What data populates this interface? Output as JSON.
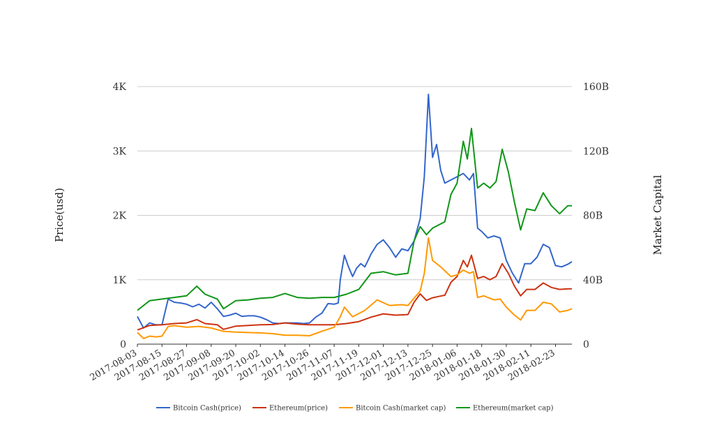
{
  "chart_data": {
    "type": "line",
    "title": "",
    "y_left_label": "Price(usd)",
    "y_right_label": "Market Capital",
    "y_left_ticks": [
      "0",
      "1K",
      "2K",
      "3K",
      "4K"
    ],
    "y_right_ticks": [
      "0",
      "40B",
      "80B",
      "120B",
      "160B"
    ],
    "y_left_range": [
      0,
      4000
    ],
    "y_right_range": [
      0,
      160000000000
    ],
    "x_range": [
      "2017-08-03",
      "2018-03-03"
    ],
    "x_ticks": [
      "2017-08-03",
      "2017-08-15",
      "2017-08-27",
      "2017-09-08",
      "2017-09-20",
      "2017-10-02",
      "2017-10-14",
      "2017-10-26",
      "2017-11-07",
      "2017-11-19",
      "2017-12-01",
      "2017-12-13",
      "2017-12-25",
      "2018-01-06",
      "2018-01-18",
      "2018-01-30",
      "2018-02-11",
      "2018-02-23"
    ],
    "grid": true,
    "legend_position": "bottom",
    "series": [
      {
        "name": "Bitcoin Cash(price)",
        "color": "#3366cc",
        "axis": "left",
        "points": [
          [
            "2017-08-03",
            430
          ],
          [
            "2017-08-06",
            250
          ],
          [
            "2017-08-09",
            330
          ],
          [
            "2017-08-12",
            300
          ],
          [
            "2017-08-15",
            300
          ],
          [
            "2017-08-18",
            700
          ],
          [
            "2017-08-21",
            650
          ],
          [
            "2017-08-24",
            640
          ],
          [
            "2017-08-27",
            620
          ],
          [
            "2017-08-30",
            580
          ],
          [
            "2017-09-02",
            620
          ],
          [
            "2017-09-05",
            560
          ],
          [
            "2017-09-08",
            650
          ],
          [
            "2017-09-11",
            550
          ],
          [
            "2017-09-14",
            430
          ],
          [
            "2017-09-17",
            450
          ],
          [
            "2017-09-20",
            480
          ],
          [
            "2017-09-23",
            430
          ],
          [
            "2017-09-26",
            440
          ],
          [
            "2017-09-29",
            440
          ],
          [
            "2017-10-02",
            420
          ],
          [
            "2017-10-05",
            380
          ],
          [
            "2017-10-08",
            330
          ],
          [
            "2017-10-11",
            320
          ],
          [
            "2017-10-14",
            330
          ],
          [
            "2017-10-17",
            330
          ],
          [
            "2017-10-20",
            330
          ],
          [
            "2017-10-23",
            320
          ],
          [
            "2017-10-26",
            330
          ],
          [
            "2017-10-29",
            420
          ],
          [
            "2017-11-01",
            480
          ],
          [
            "2017-11-04",
            630
          ],
          [
            "2017-11-07",
            620
          ],
          [
            "2017-11-09",
            640
          ],
          [
            "2017-11-10",
            1000
          ],
          [
            "2017-11-12",
            1380
          ],
          [
            "2017-11-14",
            1200
          ],
          [
            "2017-11-16",
            1050
          ],
          [
            "2017-11-18",
            1180
          ],
          [
            "2017-11-20",
            1250
          ],
          [
            "2017-11-22",
            1200
          ],
          [
            "2017-11-25",
            1400
          ],
          [
            "2017-11-28",
            1550
          ],
          [
            "2017-12-01",
            1620
          ],
          [
            "2017-12-04",
            1500
          ],
          [
            "2017-12-07",
            1350
          ],
          [
            "2017-12-10",
            1480
          ],
          [
            "2017-12-13",
            1450
          ],
          [
            "2017-12-16",
            1600
          ],
          [
            "2017-12-19",
            1950
          ],
          [
            "2017-12-21",
            2600
          ],
          [
            "2017-12-23",
            3880
          ],
          [
            "2017-12-25",
            2900
          ],
          [
            "2017-12-27",
            3100
          ],
          [
            "2017-12-29",
            2700
          ],
          [
            "2017-12-31",
            2500
          ],
          [
            "2018-01-03",
            2550
          ],
          [
            "2018-01-06",
            2600
          ],
          [
            "2018-01-09",
            2650
          ],
          [
            "2018-01-12",
            2550
          ],
          [
            "2018-01-14",
            2650
          ],
          [
            "2018-01-16",
            1800
          ],
          [
            "2018-01-18",
            1750
          ],
          [
            "2018-01-21",
            1650
          ],
          [
            "2018-01-24",
            1680
          ],
          [
            "2018-01-27",
            1650
          ],
          [
            "2018-01-30",
            1300
          ],
          [
            "2018-02-02",
            1100
          ],
          [
            "2018-02-05",
            950
          ],
          [
            "2018-02-08",
            1250
          ],
          [
            "2018-02-11",
            1250
          ],
          [
            "2018-02-14",
            1350
          ],
          [
            "2018-02-17",
            1550
          ],
          [
            "2018-02-20",
            1500
          ],
          [
            "2018-02-23",
            1220
          ],
          [
            "2018-02-26",
            1200
          ],
          [
            "2018-03-01",
            1240
          ],
          [
            "2018-03-03",
            1280
          ]
        ]
      },
      {
        "name": "Ethereum(price)",
        "color": "#cc3311",
        "axis": "left",
        "points": [
          [
            "2017-08-03",
            220
          ],
          [
            "2017-08-09",
            290
          ],
          [
            "2017-08-15",
            300
          ],
          [
            "2017-08-21",
            320
          ],
          [
            "2017-08-27",
            330
          ],
          [
            "2017-09-01",
            380
          ],
          [
            "2017-09-05",
            320
          ],
          [
            "2017-09-11",
            300
          ],
          [
            "2017-09-14",
            230
          ],
          [
            "2017-09-20",
            280
          ],
          [
            "2017-09-26",
            290
          ],
          [
            "2017-10-02",
            300
          ],
          [
            "2017-10-08",
            305
          ],
          [
            "2017-10-14",
            330
          ],
          [
            "2017-10-20",
            310
          ],
          [
            "2017-10-26",
            300
          ],
          [
            "2017-11-01",
            300
          ],
          [
            "2017-11-07",
            300
          ],
          [
            "2017-11-13",
            320
          ],
          [
            "2017-11-19",
            350
          ],
          [
            "2017-11-25",
            420
          ],
          [
            "2017-12-01",
            470
          ],
          [
            "2017-12-07",
            450
          ],
          [
            "2017-12-13",
            460
          ],
          [
            "2017-12-16",
            650
          ],
          [
            "2017-12-19",
            780
          ],
          [
            "2017-12-22",
            680
          ],
          [
            "2017-12-25",
            720
          ],
          [
            "2017-12-28",
            740
          ],
          [
            "2017-12-31",
            760
          ],
          [
            "2018-01-03",
            960
          ],
          [
            "2018-01-06",
            1050
          ],
          [
            "2018-01-09",
            1300
          ],
          [
            "2018-01-11",
            1200
          ],
          [
            "2018-01-13",
            1380
          ],
          [
            "2018-01-16",
            1020
          ],
          [
            "2018-01-19",
            1050
          ],
          [
            "2018-01-22",
            1000
          ],
          [
            "2018-01-25",
            1050
          ],
          [
            "2018-01-28",
            1250
          ],
          [
            "2018-01-31",
            1100
          ],
          [
            "2018-02-03",
            900
          ],
          [
            "2018-02-06",
            750
          ],
          [
            "2018-02-09",
            850
          ],
          [
            "2018-02-13",
            850
          ],
          [
            "2018-02-17",
            950
          ],
          [
            "2018-02-21",
            880
          ],
          [
            "2018-02-25",
            850
          ],
          [
            "2018-03-01",
            860
          ],
          [
            "2018-03-03",
            860
          ]
        ]
      },
      {
        "name": "Bitcoin Cash(market cap)",
        "color": "#ff9900",
        "axis": "right",
        "points": [
          [
            "2017-08-03",
            7200000000
          ],
          [
            "2017-08-06",
            3500000000
          ],
          [
            "2017-08-09",
            5000000000
          ],
          [
            "2017-08-12",
            4500000000
          ],
          [
            "2017-08-15",
            5000000000
          ],
          [
            "2017-08-18",
            11000000000
          ],
          [
            "2017-08-21",
            11500000000
          ],
          [
            "2017-08-27",
            10500000000
          ],
          [
            "2017-09-02",
            11000000000
          ],
          [
            "2017-09-08",
            10000000000
          ],
          [
            "2017-09-14",
            8000000000
          ],
          [
            "2017-09-20",
            7500000000
          ],
          [
            "2017-09-26",
            7200000000
          ],
          [
            "2017-10-02",
            7000000000
          ],
          [
            "2017-10-08",
            6500000000
          ],
          [
            "2017-10-14",
            5500000000
          ],
          [
            "2017-10-20",
            5500000000
          ],
          [
            "2017-10-26",
            5200000000
          ],
          [
            "2017-11-01",
            8000000000
          ],
          [
            "2017-11-07",
            10500000000
          ],
          [
            "2017-11-10",
            17000000000
          ],
          [
            "2017-11-12",
            23000000000
          ],
          [
            "2017-11-16",
            17000000000
          ],
          [
            "2017-11-22",
            21000000000
          ],
          [
            "2017-11-28",
            27500000000
          ],
          [
            "2017-12-04",
            24000000000
          ],
          [
            "2017-12-10",
            24500000000
          ],
          [
            "2017-12-13",
            24000000000
          ],
          [
            "2017-12-19",
            33000000000
          ],
          [
            "2017-12-21",
            44000000000
          ],
          [
            "2017-12-23",
            66000000000
          ],
          [
            "2017-12-25",
            52000000000
          ],
          [
            "2017-12-29",
            48000000000
          ],
          [
            "2018-01-03",
            42000000000
          ],
          [
            "2018-01-06",
            43000000000
          ],
          [
            "2018-01-09",
            46000000000
          ],
          [
            "2018-01-12",
            44000000000
          ],
          [
            "2018-01-14",
            45000000000
          ],
          [
            "2018-01-16",
            29000000000
          ],
          [
            "2018-01-19",
            30000000000
          ],
          [
            "2018-01-24",
            27500000000
          ],
          [
            "2018-01-27",
            28000000000
          ],
          [
            "2018-01-30",
            23000000000
          ],
          [
            "2018-02-03",
            18000000000
          ],
          [
            "2018-02-06",
            15000000000
          ],
          [
            "2018-02-09",
            21000000000
          ],
          [
            "2018-02-13",
            21000000000
          ],
          [
            "2018-02-17",
            26000000000
          ],
          [
            "2018-02-21",
            25000000000
          ],
          [
            "2018-02-25",
            20000000000
          ],
          [
            "2018-03-01",
            21000000000
          ],
          [
            "2018-03-03",
            22000000000
          ]
        ]
      },
      {
        "name": "Ethereum(market cap)",
        "color": "#109618",
        "axis": "right",
        "points": [
          [
            "2017-08-03",
            21000000000
          ],
          [
            "2017-08-09",
            27000000000
          ],
          [
            "2017-08-15",
            28000000000
          ],
          [
            "2017-08-21",
            29000000000
          ],
          [
            "2017-08-27",
            30000000000
          ],
          [
            "2017-09-01",
            36000000000
          ],
          [
            "2017-09-05",
            31000000000
          ],
          [
            "2017-09-11",
            28000000000
          ],
          [
            "2017-09-14",
            22000000000
          ],
          [
            "2017-09-20",
            27000000000
          ],
          [
            "2017-09-26",
            27500000000
          ],
          [
            "2017-10-02",
            28500000000
          ],
          [
            "2017-10-08",
            29000000000
          ],
          [
            "2017-10-14",
            31500000000
          ],
          [
            "2017-10-20",
            29000000000
          ],
          [
            "2017-10-26",
            28500000000
          ],
          [
            "2017-11-01",
            29000000000
          ],
          [
            "2017-11-07",
            29000000000
          ],
          [
            "2017-11-13",
            31000000000
          ],
          [
            "2017-11-19",
            34000000000
          ],
          [
            "2017-11-25",
            44000000000
          ],
          [
            "2017-12-01",
            45000000000
          ],
          [
            "2017-12-07",
            43000000000
          ],
          [
            "2017-12-13",
            44000000000
          ],
          [
            "2017-12-16",
            64000000000
          ],
          [
            "2017-12-19",
            73000000000
          ],
          [
            "2017-12-22",
            68000000000
          ],
          [
            "2017-12-25",
            72000000000
          ],
          [
            "2017-12-28",
            74000000000
          ],
          [
            "2017-12-31",
            76000000000
          ],
          [
            "2018-01-03",
            93000000000
          ],
          [
            "2018-01-06",
            100000000000
          ],
          [
            "2018-01-09",
            126000000000
          ],
          [
            "2018-01-11",
            115000000000
          ],
          [
            "2018-01-13",
            134000000000
          ],
          [
            "2018-01-16",
            97000000000
          ],
          [
            "2018-01-19",
            100000000000
          ],
          [
            "2018-01-22",
            97000000000
          ],
          [
            "2018-01-25",
            101000000000
          ],
          [
            "2018-01-28",
            121000000000
          ],
          [
            "2018-01-31",
            107000000000
          ],
          [
            "2018-02-03",
            88000000000
          ],
          [
            "2018-02-06",
            71000000000
          ],
          [
            "2018-02-09",
            84000000000
          ],
          [
            "2018-02-13",
            83000000000
          ],
          [
            "2018-02-17",
            94000000000
          ],
          [
            "2018-02-21",
            86000000000
          ],
          [
            "2018-02-25",
            81000000000
          ],
          [
            "2018-03-01",
            86000000000
          ],
          [
            "2018-03-03",
            86000000000
          ]
        ]
      }
    ]
  }
}
